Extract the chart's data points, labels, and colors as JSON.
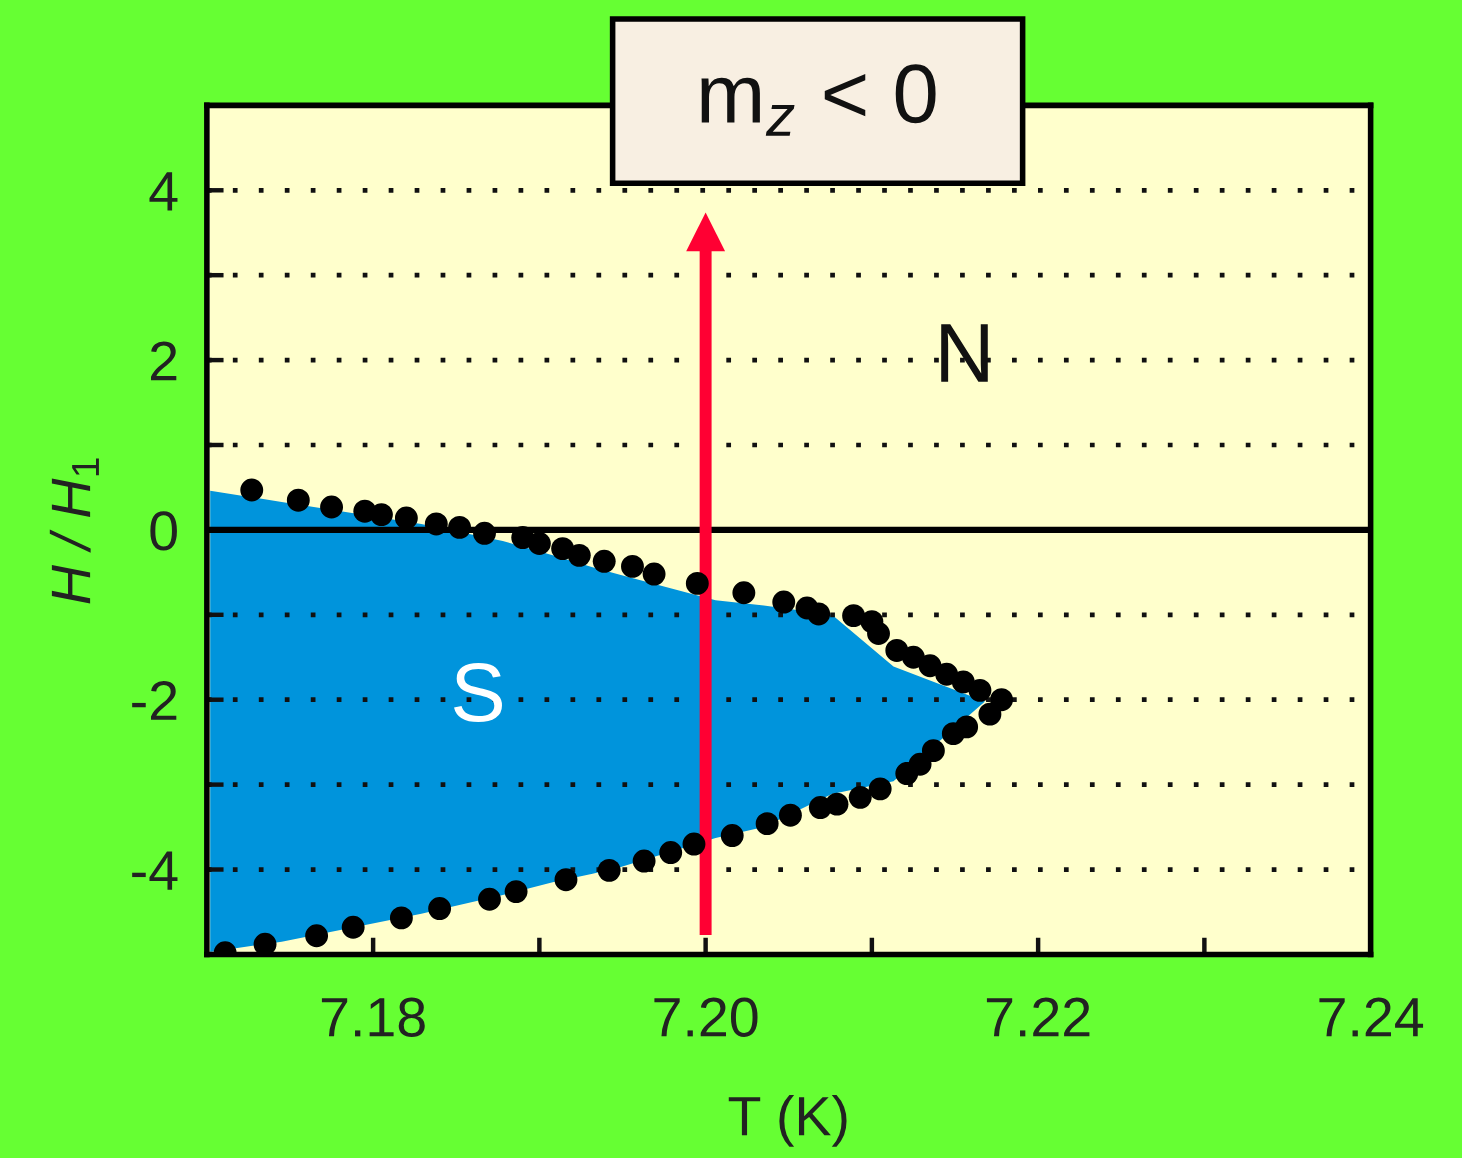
{
  "chart_data": {
    "type": "scatter",
    "xlabel": "T (K)",
    "ylabel": "H / H$_{1}$",
    "xlim": [
      7.17,
      7.24
    ],
    "ylim": [
      -5,
      5
    ],
    "xticks": [
      7.18,
      {
        "value": 7.19,
        "label": null
      },
      {
        "value": 7.2,
        "label": "7.20"
      },
      {
        "value": 7.21,
        "label": null
      },
      7.22,
      {
        "value": 7.23,
        "label": null
      },
      7.24
    ],
    "yticks": [
      -4,
      {
        "value": -3,
        "label": null
      },
      -2,
      {
        "value": -1,
        "label": null
      },
      0,
      {
        "value": 1,
        "label": null
      },
      2,
      {
        "value": 3,
        "label": null
      },
      4
    ],
    "grid": "y",
    "ref_lines": [
      {
        "axis": "y",
        "value": 0,
        "color": "#000000",
        "line_style": "solid"
      },
      {
        "axis": "x",
        "value": 7.2,
        "label": "m$_{z}$ < 0",
        "color": "#ff0033",
        "line_style": "solid"
      }
    ],
    "series": [
      {
        "type": "area",
        "color": "#0094dc",
        "x": [
          7.1702,
          7.1745,
          7.1829,
          7.1878,
          7.1908,
          7.1932,
          7.1949,
          7.2006,
          7.2035,
          7.2076,
          7.2113,
          7.2168
        ],
        "values": [
          null,
          null,
          null,
          null,
          null,
          null,
          null,
          null,
          null,
          null,
          null,
          null
        ],
        "upper": [
          0.46,
          0.33,
          0.07,
          -0.13,
          -0.3,
          -0.44,
          -0.53,
          -0.83,
          -0.89,
          -1.0,
          -1.61,
          -2.02
        ],
        "lower": [
          -4.97,
          -4.85,
          -4.52,
          -4.3,
          -4.15,
          -4.05,
          -3.97,
          -3.63,
          -3.5,
          -3.11,
          -2.96,
          -2.02
        ]
      },
      {
        "color": "#000000",
        "marker": "circle",
        "x": [
          7.1727,
          7.1755,
          7.1775,
          7.1795,
          7.1805,
          7.182,
          7.1838,
          7.1852,
          7.1867,
          7.189,
          7.19,
          7.1914,
          7.1924,
          7.1939,
          7.1956,
          7.1969,
          7.1995,
          7.2023,
          7.2047,
          7.2061,
          7.2068,
          7.2089,
          7.21,
          7.2104,
          7.2115,
          7.2125,
          7.2135,
          7.2145,
          7.2155,
          7.2165,
          7.2178,
          7.2171,
          7.2157,
          7.2149,
          7.2137,
          7.2129,
          7.2121,
          7.2105,
          7.2093,
          7.2079,
          7.2069,
          7.2051,
          7.2037,
          7.2016,
          7.1993,
          7.1979,
          7.1963,
          7.1942,
          7.1916,
          7.1886,
          7.187,
          7.184,
          7.1817,
          7.1788,
          7.1766,
          7.1735,
          7.1711
        ],
        "values": [
          0.47,
          0.35,
          0.27,
          0.22,
          0.18,
          0.14,
          0.07,
          0.03,
          -0.04,
          -0.09,
          -0.16,
          -0.22,
          -0.3,
          -0.37,
          -0.43,
          -0.52,
          -0.63,
          -0.74,
          -0.85,
          -0.92,
          -0.99,
          -1.01,
          -1.08,
          -1.22,
          -1.42,
          -1.5,
          -1.6,
          -1.7,
          -1.79,
          -1.89,
          -2.0,
          -2.17,
          -2.32,
          -2.4,
          -2.6,
          -2.76,
          -2.87,
          -3.05,
          -3.15,
          -3.23,
          -3.27,
          -3.36,
          -3.46,
          -3.6,
          -3.7,
          -3.8,
          -3.9,
          -4.01,
          -4.12,
          -4.26,
          -4.35,
          -4.46,
          -4.57,
          -4.68,
          -4.78,
          -4.88,
          -4.98
        ]
      }
    ],
    "annotations": [
      "N",
      "S"
    ]
  }
}
